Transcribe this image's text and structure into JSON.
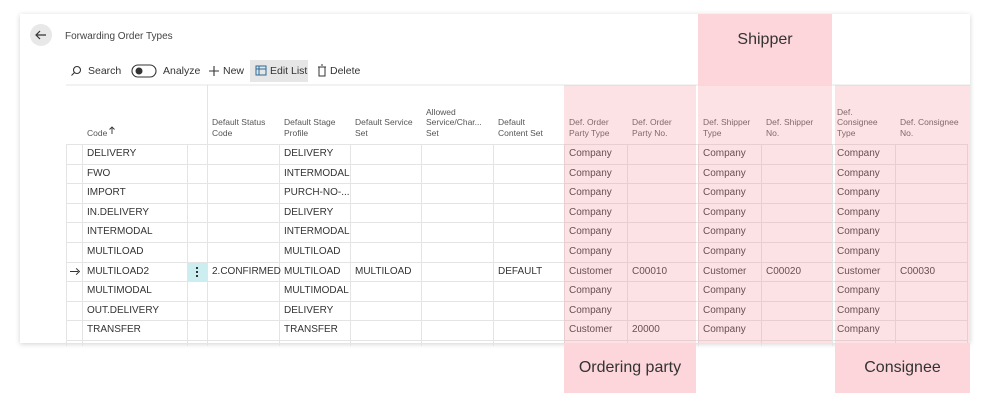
{
  "header": {
    "title": "Forwarding Order Types"
  },
  "toolbar": {
    "search": "Search",
    "analyze": "Analyze",
    "new": "New",
    "edit_list": "Edit List",
    "delete": "Delete"
  },
  "table": {
    "columns": [
      {
        "lines": [
          "Code"
        ]
      },
      {
        "lines": [
          "Default Status",
          "Code"
        ]
      },
      {
        "lines": [
          "Default Stage",
          "Profile"
        ]
      },
      {
        "lines": [
          "Default Service",
          "Set"
        ]
      },
      {
        "lines": [
          "Allowed",
          "Service/Char...",
          "Set"
        ]
      },
      {
        "lines": [
          "Default",
          "Content Set"
        ]
      },
      {
        "lines": [
          "Def. Order",
          "Party Type"
        ]
      },
      {
        "lines": [
          "Def. Order",
          "Party No."
        ]
      },
      {
        "lines": [
          "Def. Shipper",
          "Type"
        ]
      },
      {
        "lines": [
          "Def. Shipper",
          "No."
        ]
      },
      {
        "lines": [
          "Def.",
          "Consignee",
          "Type"
        ]
      },
      {
        "lines": [
          "Def. Consignee",
          "No."
        ]
      }
    ],
    "current_row": 6,
    "rows": [
      [
        "DELIVERY",
        null,
        "DELIVERY",
        null,
        null,
        null,
        "Company",
        null,
        "Company",
        null,
        "Company",
        null
      ],
      [
        "FWO",
        null,
        "INTERMODAL",
        null,
        null,
        null,
        "Company",
        null,
        "Company",
        null,
        "Company",
        null
      ],
      [
        "IMPORT",
        null,
        "PURCH-NO-...",
        null,
        null,
        null,
        "Company",
        null,
        "Company",
        null,
        "Company",
        null
      ],
      [
        "IN.DELIVERY",
        null,
        "DELIVERY",
        null,
        null,
        null,
        "Company",
        null,
        "Company",
        null,
        "Company",
        null
      ],
      [
        "INTERMODAL",
        null,
        "INTERMODAL",
        null,
        null,
        null,
        "Company",
        null,
        "Company",
        null,
        "Company",
        null
      ],
      [
        "MULTILOAD",
        null,
        "MULTILOAD",
        null,
        null,
        null,
        "Company",
        null,
        "Company",
        null,
        "Company",
        null
      ],
      [
        "MULTILOAD2",
        "2.CONFIRMED",
        "MULTILOAD",
        "MULTILOAD",
        null,
        "DEFAULT",
        "Customer",
        "C00010",
        "Customer",
        "C00020",
        "Customer",
        "C00030"
      ],
      [
        "MULTIMODAL",
        null,
        "MULTIMODAL",
        null,
        null,
        null,
        "Company",
        null,
        "Company",
        null,
        "Company",
        null
      ],
      [
        "OUT.DELIVERY",
        null,
        "DELIVERY",
        null,
        null,
        null,
        "Company",
        null,
        "Company",
        null,
        "Company",
        null
      ],
      [
        "TRANSFER",
        null,
        "TRANSFER",
        null,
        null,
        null,
        "Customer",
        "20000",
        "Company",
        null,
        "Company",
        null
      ]
    ]
  },
  "callouts": {
    "shipper": "Shipper",
    "ordering_party": "Ordering party",
    "consignee": "Consignee"
  }
}
